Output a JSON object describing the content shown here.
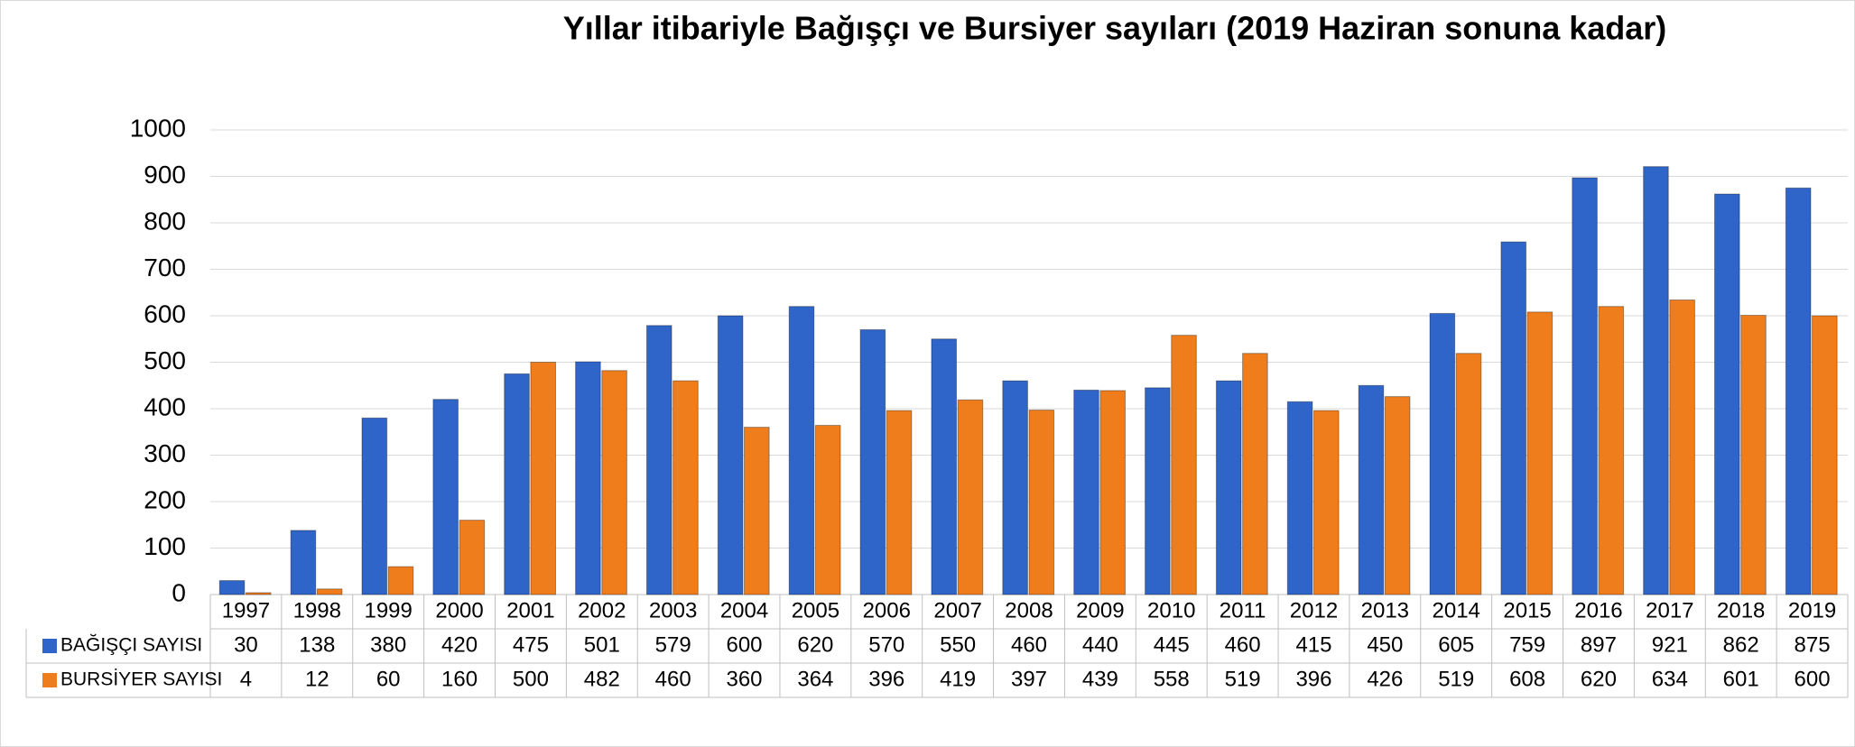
{
  "chart_data": {
    "type": "bar",
    "title": "Yıllar itibariyle Bağışçı ve Bursiyer sayıları (2019 Haziran sonuna kadar)",
    "categories": [
      "1997",
      "1998",
      "1999",
      "2000",
      "2001",
      "2002",
      "2003",
      "2004",
      "2005",
      "2006",
      "2007",
      "2008",
      "2009",
      "2010",
      "2011",
      "2012",
      "2013",
      "2014",
      "2015",
      "2016",
      "2017",
      "2018",
      "2019"
    ],
    "series": [
      {
        "name": "BAĞIŞÇI SAYISI",
        "color": "#2f64c8",
        "values": [
          30,
          138,
          380,
          420,
          475,
          501,
          579,
          600,
          620,
          570,
          550,
          460,
          440,
          445,
          460,
          415,
          450,
          605,
          759,
          897,
          921,
          862,
          875
        ]
      },
      {
        "name": "BURSİYER SAYISI",
        "color": "#f07d1c",
        "values": [
          4,
          12,
          60,
          160,
          500,
          482,
          460,
          360,
          364,
          396,
          419,
          397,
          439,
          558,
          519,
          396,
          426,
          519,
          608,
          620,
          634,
          601,
          600
        ]
      }
    ],
    "ylim": [
      0,
      1000
    ],
    "yticks": [
      0,
      100,
      200,
      300,
      400,
      500,
      600,
      700,
      800,
      900,
      1000
    ],
    "grid": true
  }
}
